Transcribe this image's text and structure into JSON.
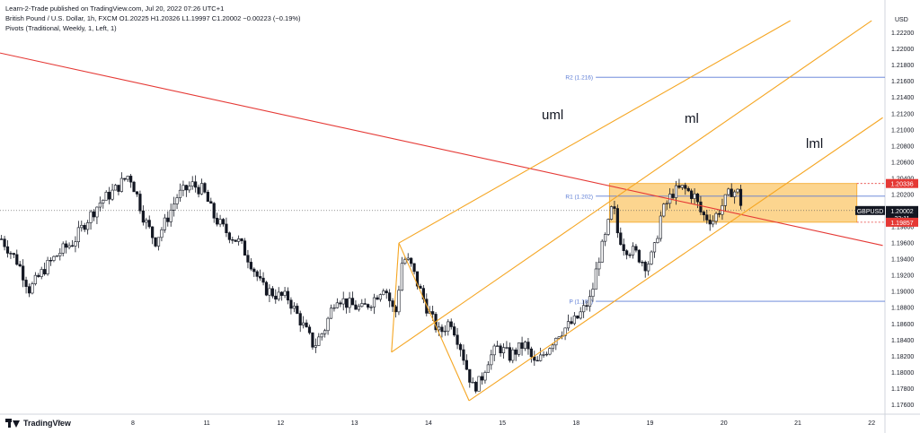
{
  "header": {
    "published": "Learn-2-Trade published on TradingView.com, Jul 20, 2022 07:26 UTC+1",
    "symbol_line": "British Pound / U.S. Dollar, 1h, FXCM   O1.20225  H1.20326  L1.19997  C1.20002  −0.00223 (−0.19%)",
    "indicator_line": "Pivots (Traditional, Weekly, 1, Left, 1)"
  },
  "brand": {
    "name": "TradingView",
    "icon": "tradingview-logo-icon"
  },
  "colors": {
    "bull": "#ffffff",
    "bear": "#131722",
    "pitchfork": "#f5a623",
    "trendline": "#e53935",
    "pivot": "#5b7bd5",
    "zone": "#f9b233",
    "badge_red": "#e53935",
    "badge_dark": "#131722"
  },
  "chart_data": {
    "type": "candlestick",
    "symbol": "GBPUSD",
    "timeframe": "1h",
    "currency": "USD",
    "y_ticks": [
      "1.17600",
      "1.17800",
      "1.18000",
      "1.18200",
      "1.18400",
      "1.18600",
      "1.18800",
      "1.19000",
      "1.19200",
      "1.19400",
      "1.19600",
      "1.19800",
      "1.20000",
      "1.20200",
      "1.20400",
      "1.20600",
      "1.20800",
      "1.21000",
      "1.21200",
      "1.21400",
      "1.21600",
      "1.21800",
      "1.22000",
      "1.22200"
    ],
    "ylim": [
      1.1755,
      1.2245
    ],
    "x_ticks": [
      {
        "label": "7",
        "t": 0.0
      },
      {
        "label": "8",
        "t": 1.0
      },
      {
        "label": "11",
        "t": 2.0
      },
      {
        "label": "12",
        "t": 3.0
      },
      {
        "label": "13",
        "t": 4.0
      },
      {
        "label": "14",
        "t": 5.0
      },
      {
        "label": "15",
        "t": 6.0
      },
      {
        "label": "18",
        "t": 7.0
      },
      {
        "label": "19",
        "t": 8.0
      },
      {
        "label": "20",
        "t": 9.0
      },
      {
        "label": "21",
        "t": 10.0
      },
      {
        "label": "22",
        "t": 11.0
      }
    ],
    "xlim": [
      -0.8,
      11.18
    ],
    "price_path": [
      [
        -0.78,
        1.1965
      ],
      [
        -0.55,
        1.1935
      ],
      [
        -0.4,
        1.1902
      ],
      [
        -0.2,
        1.1928
      ],
      [
        0.0,
        1.1948
      ],
      [
        0.2,
        1.1962
      ],
      [
        0.35,
        1.1985
      ],
      [
        0.55,
        1.201
      ],
      [
        0.75,
        1.2025
      ],
      [
        0.95,
        1.2045
      ],
      [
        1.05,
        1.202
      ],
      [
        1.15,
        1.199
      ],
      [
        1.3,
        1.1962
      ],
      [
        1.45,
        1.1988
      ],
      [
        1.6,
        1.2018
      ],
      [
        1.8,
        1.2032
      ],
      [
        1.95,
        1.2025
      ],
      [
        2.1,
        1.1992
      ],
      [
        2.25,
        1.1975
      ],
      [
        2.45,
        1.196
      ],
      [
        2.6,
        1.1935
      ],
      [
        2.75,
        1.1905
      ],
      [
        2.95,
        1.1895
      ],
      [
        3.1,
        1.1892
      ],
      [
        3.2,
        1.1875
      ],
      [
        3.35,
        1.185
      ],
      [
        3.45,
        1.1832
      ],
      [
        3.6,
        1.1855
      ],
      [
        3.75,
        1.1895
      ],
      [
        3.9,
        1.1885
      ],
      [
        4.1,
        1.1878
      ],
      [
        4.25,
        1.189
      ],
      [
        4.4,
        1.1908
      ],
      [
        4.55,
        1.187
      ],
      [
        4.65,
        1.1942
      ],
      [
        4.75,
        1.1935
      ],
      [
        4.85,
        1.191
      ],
      [
        5.0,
        1.1875
      ],
      [
        5.15,
        1.1848
      ],
      [
        5.3,
        1.1865
      ],
      [
        5.45,
        1.1828
      ],
      [
        5.5,
        1.181
      ],
      [
        5.6,
        1.1782
      ],
      [
        5.7,
        1.1788
      ],
      [
        5.8,
        1.1815
      ],
      [
        5.95,
        1.1832
      ],
      [
        6.1,
        1.182
      ],
      [
        6.3,
        1.1835
      ],
      [
        6.45,
        1.1808
      ],
      [
        6.6,
        1.1828
      ],
      [
        6.75,
        1.1848
      ],
      [
        6.9,
        1.1858
      ],
      [
        7.0,
        1.1865
      ],
      [
        7.1,
        1.1878
      ],
      [
        7.2,
        1.1892
      ],
      [
        7.3,
        1.194
      ],
      [
        7.4,
        1.1968
      ],
      [
        7.5,
        1.201
      ],
      [
        7.55,
        1.1975
      ],
      [
        7.65,
        1.1955
      ],
      [
        7.8,
        1.1948
      ],
      [
        7.95,
        1.1932
      ],
      [
        8.05,
        1.1948
      ],
      [
        8.15,
        1.1995
      ],
      [
        8.3,
        1.2022
      ],
      [
        8.45,
        1.2028
      ],
      [
        8.6,
        1.2018
      ],
      [
        8.7,
        1.1995
      ],
      [
        8.85,
        1.1988
      ],
      [
        9.0,
        1.201
      ],
      [
        9.1,
        1.2025
      ],
      [
        9.2,
        1.2022
      ],
      [
        9.25,
        1.2
      ]
    ],
    "pivots": [
      {
        "label": "R2 (1.216)",
        "value": 1.2165,
        "from": 6.9
      },
      {
        "label": "R1 (1.202)",
        "value": 1.2018,
        "from": 6.9
      },
      {
        "label": "P (1.189)",
        "value": 1.1888,
        "from": 6.9
      }
    ],
    "pitchfork": {
      "uml_label": "uml",
      "ml_label": "ml",
      "lml_label": "lml",
      "p0": [
        4.5,
        1.1825
      ],
      "p1": [
        4.6,
        1.196
      ],
      "p2": [
        5.55,
        1.1765
      ],
      "uml_end": [
        9.9,
        1.2235
      ],
      "ml_end": [
        11.0,
        1.2235
      ],
      "lml_end": [
        11.15,
        1.2115
      ]
    },
    "trendline": {
      "start": [
        -0.8,
        1.2195
      ],
      "end": [
        11.15,
        1.1957
      ]
    },
    "zone": {
      "t1": 7.45,
      "t2": 10.8,
      "top": 1.20336,
      "bottom": 1.19857
    },
    "current_price": 1.20002,
    "badges": [
      {
        "label": "1.20336",
        "value": 1.20336,
        "style": "red"
      },
      {
        "label": "GBPUSD",
        "value": 1.20002,
        "style": "dark-left"
      },
      {
        "label": "1.20002",
        "value": 1.20002,
        "style": "dark"
      },
      {
        "label": "33:11",
        "value": 1.19912,
        "style": "dark"
      },
      {
        "label": "1.19857",
        "value": 1.19857,
        "style": "red"
      }
    ]
  }
}
